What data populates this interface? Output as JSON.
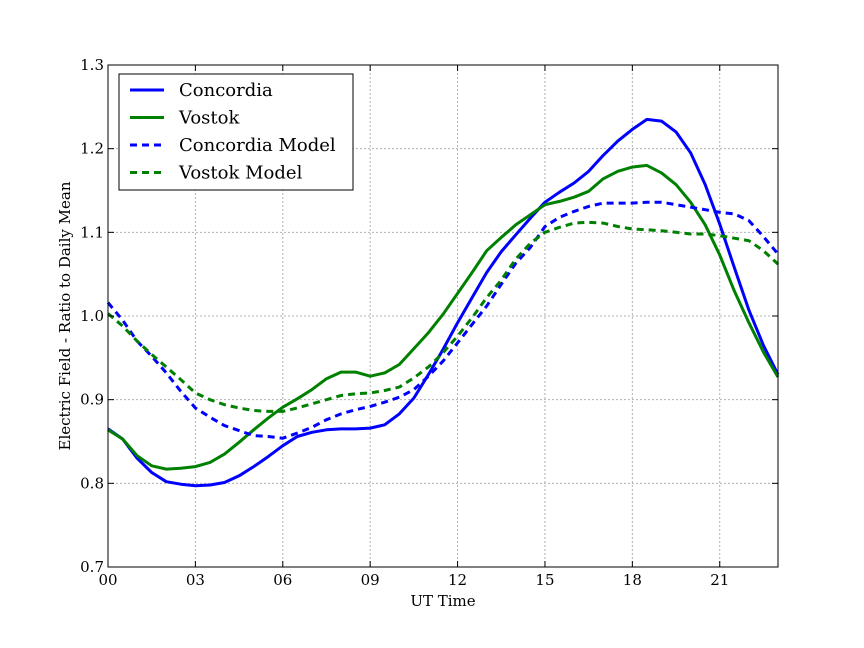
{
  "chart_data": {
    "type": "line",
    "title": "",
    "xlabel": "UT Time",
    "ylabel": "Electric Field - Ratio to Daily Mean",
    "xlim": [
      0,
      23
    ],
    "ylim": [
      0.7,
      1.3
    ],
    "grid": true,
    "legend_position": "top-left",
    "x_ticks": [
      0,
      3,
      6,
      9,
      12,
      15,
      18,
      21
    ],
    "x_tick_labels": [
      "00",
      "03",
      "06",
      "09",
      "12",
      "15",
      "18",
      "21"
    ],
    "y_ticks": [
      0.7,
      0.8,
      0.9,
      1.0,
      1.1,
      1.2,
      1.3
    ],
    "y_tick_labels": [
      "0.7",
      "0.8",
      "0.9",
      "1.0",
      "1.1",
      "1.2",
      "1.3"
    ],
    "series": [
      {
        "name": "Concordia",
        "color": "#0000ff",
        "style": "solid",
        "x": [
          0,
          0.5,
          1,
          1.5,
          2,
          2.5,
          3,
          3.5,
          4,
          4.5,
          5,
          5.5,
          6,
          6.5,
          7,
          7.5,
          8,
          8.5,
          9,
          9.5,
          10,
          10.5,
          11,
          11.5,
          12,
          12.5,
          13,
          13.5,
          14,
          14.5,
          15,
          15.5,
          16,
          16.5,
          17,
          17.5,
          18,
          18.5,
          19,
          19.5,
          20,
          20.5,
          21,
          21.5,
          22,
          22.5,
          23
        ],
        "values": [
          0.865,
          0.853,
          0.83,
          0.813,
          0.802,
          0.799,
          0.797,
          0.798,
          0.801,
          0.809,
          0.82,
          0.832,
          0.845,
          0.856,
          0.861,
          0.864,
          0.865,
          0.865,
          0.866,
          0.87,
          0.883,
          0.902,
          0.93,
          0.96,
          0.992,
          1.022,
          1.052,
          1.077,
          1.097,
          1.117,
          1.136,
          1.148,
          1.159,
          1.173,
          1.192,
          1.209,
          1.223,
          1.235,
          1.233,
          1.22,
          1.195,
          1.157,
          1.11,
          1.058,
          1.007,
          0.965,
          0.93
        ]
      },
      {
        "name": "Vostok",
        "color": "#008000",
        "style": "solid",
        "x": [
          0,
          0.5,
          1,
          1.5,
          2,
          2.5,
          3,
          3.5,
          4,
          4.5,
          5,
          5.5,
          6,
          6.5,
          7,
          7.5,
          8,
          8.5,
          9,
          9.5,
          10,
          10.5,
          11,
          11.5,
          12,
          12.5,
          13,
          13.5,
          14,
          14.5,
          15,
          15.5,
          16,
          16.5,
          17,
          17.5,
          18,
          18.5,
          19,
          19.5,
          20,
          20.5,
          21,
          21.5,
          22,
          22.5,
          23
        ],
        "values": [
          0.864,
          0.853,
          0.833,
          0.821,
          0.817,
          0.818,
          0.82,
          0.825,
          0.835,
          0.849,
          0.864,
          0.878,
          0.891,
          0.901,
          0.912,
          0.925,
          0.933,
          0.933,
          0.928,
          0.932,
          0.942,
          0.961,
          0.98,
          1.002,
          1.027,
          1.052,
          1.078,
          1.094,
          1.109,
          1.121,
          1.133,
          1.137,
          1.142,
          1.149,
          1.164,
          1.173,
          1.178,
          1.18,
          1.171,
          1.157,
          1.136,
          1.109,
          1.073,
          1.03,
          0.992,
          0.957,
          0.927
        ]
      },
      {
        "name": "Concordia Model",
        "color": "#0000ff",
        "style": "dashed",
        "x": [
          0,
          0.5,
          1,
          1.5,
          2,
          2.5,
          3,
          3.5,
          4,
          4.5,
          5,
          5.5,
          6,
          6.5,
          7,
          7.5,
          8,
          8.5,
          9,
          9.5,
          10,
          10.5,
          11,
          11.5,
          12,
          12.5,
          13,
          13.5,
          14,
          14.5,
          15,
          15.5,
          16,
          16.5,
          17,
          17.5,
          18,
          18.5,
          19,
          19.5,
          20,
          20.5,
          21,
          21.5,
          22,
          22.5,
          23
        ],
        "values": [
          1.016,
          0.995,
          0.97,
          0.952,
          0.932,
          0.91,
          0.89,
          0.879,
          0.869,
          0.863,
          0.857,
          0.856,
          0.854,
          0.86,
          0.867,
          0.876,
          0.883,
          0.888,
          0.892,
          0.897,
          0.903,
          0.912,
          0.928,
          0.946,
          0.968,
          0.99,
          1.012,
          1.038,
          1.063,
          1.082,
          1.107,
          1.118,
          1.125,
          1.131,
          1.135,
          1.135,
          1.135,
          1.136,
          1.136,
          1.133,
          1.13,
          1.127,
          1.124,
          1.122,
          1.114,
          1.095,
          1.074
        ]
      },
      {
        "name": "Vostok Model",
        "color": "#008000",
        "style": "dashed",
        "x": [
          0,
          0.5,
          1,
          1.5,
          2,
          2.5,
          3,
          3.5,
          4,
          4.5,
          5,
          5.5,
          6,
          6.5,
          7,
          7.5,
          8,
          8.5,
          9,
          9.5,
          10,
          10.5,
          11,
          11.5,
          12,
          12.5,
          13,
          13.5,
          14,
          14.5,
          15,
          15.5,
          16,
          16.5,
          17,
          17.5,
          18,
          18.5,
          19,
          19.5,
          20,
          20.5,
          21,
          21.5,
          22,
          22.5,
          23
        ],
        "values": [
          1.003,
          0.988,
          0.97,
          0.954,
          0.939,
          0.924,
          0.908,
          0.9,
          0.894,
          0.89,
          0.887,
          0.886,
          0.886,
          0.89,
          0.895,
          0.9,
          0.905,
          0.907,
          0.908,
          0.911,
          0.915,
          0.926,
          0.939,
          0.956,
          0.976,
          0.998,
          1.022,
          1.043,
          1.068,
          1.087,
          1.1,
          1.106,
          1.111,
          1.112,
          1.111,
          1.107,
          1.104,
          1.103,
          1.102,
          1.1,
          1.098,
          1.098,
          1.096,
          1.093,
          1.09,
          1.078,
          1.062
        ]
      }
    ]
  }
}
